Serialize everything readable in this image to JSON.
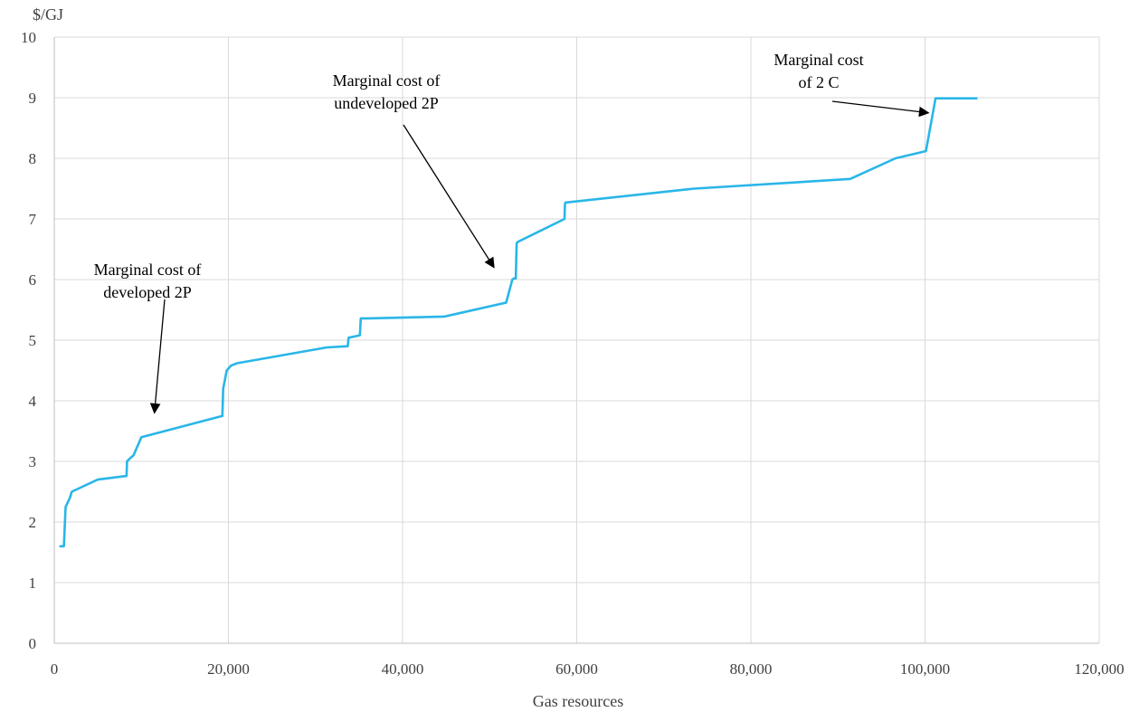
{
  "chart_data": {
    "type": "line",
    "title": "",
    "xlabel": "Gas resources",
    "ylabel": "$/GJ",
    "xlim": [
      0,
      120000
    ],
    "ylim": [
      0,
      10
    ],
    "x_ticks": [
      0,
      20000,
      40000,
      60000,
      80000,
      100000,
      120000
    ],
    "x_tick_labels": [
      "0",
      "20,000",
      "40,000",
      "60,000",
      "80,000",
      "100,000",
      "120,000"
    ],
    "y_ticks": [
      0,
      1,
      2,
      3,
      4,
      5,
      6,
      7,
      8,
      9,
      10
    ],
    "y_tick_labels": [
      "0",
      "1",
      "2",
      "3",
      "4",
      "5",
      "6",
      "7",
      "8",
      "9",
      "10"
    ],
    "grid": true,
    "legend": "none",
    "line_color": "#29b6e8",
    "series": [
      {
        "x": [
          700,
          1100,
          1200,
          1300,
          1800,
          2000,
          5000,
          8300,
          8350,
          8700,
          9100,
          10000,
          19300,
          19400,
          19800,
          20300,
          21000,
          31300,
          33700,
          33800,
          35100,
          35200,
          36000,
          44800,
          51900,
          52600,
          52800,
          53000,
          53100,
          53200,
          58600,
          58650,
          58700,
          73500,
          91400,
          96600,
          100100,
          101200,
          105900
        ],
        "y": [
          1.6,
          1.6,
          1.9,
          2.25,
          2.4,
          2.5,
          2.7,
          2.76,
          3.0,
          3.05,
          3.1,
          3.4,
          3.75,
          4.2,
          4.5,
          4.58,
          4.62,
          4.88,
          4.9,
          5.04,
          5.08,
          5.36,
          5.36,
          5.39,
          5.62,
          6.0,
          6.02,
          6.02,
          6.6,
          6.62,
          7.0,
          7.25,
          7.27,
          7.5,
          7.66,
          8.0,
          8.12,
          8.99,
          8.99
        ]
      }
    ],
    "annotations": [
      {
        "lines": [
          "Marginal  cost of",
          "developed 2P"
        ],
        "arrow_to": [
          11500,
          3.8
        ]
      },
      {
        "lines": [
          "Marginal  cost of",
          "undeveloped 2P"
        ],
        "arrow_to": [
          50500,
          6.2
        ]
      },
      {
        "lines": [
          "Marginal  cost",
          "of 2 C"
        ],
        "arrow_to": [
          100400,
          8.75
        ]
      }
    ]
  }
}
